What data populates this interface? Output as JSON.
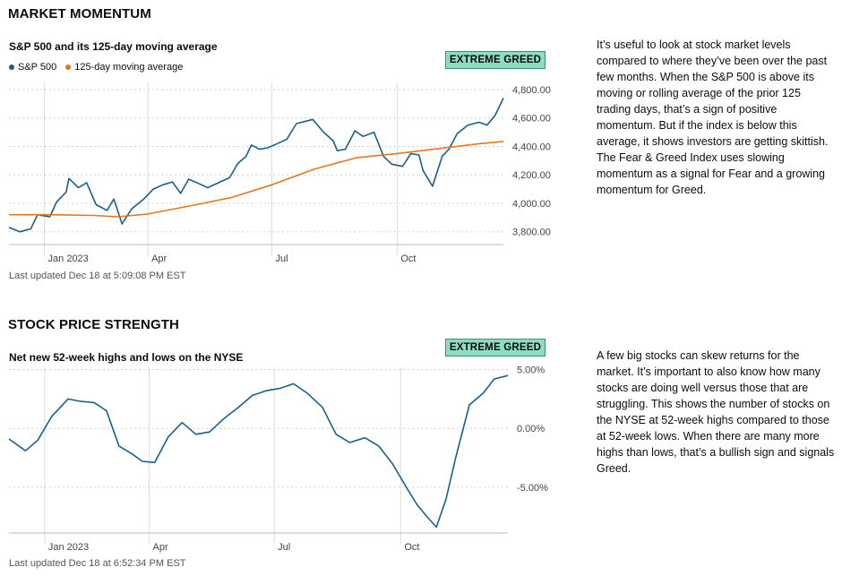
{
  "colors": {
    "sp500_line": "#1a5f8c",
    "moving_average_line": "#e8761e",
    "badge_bg": "#8fdcc4",
    "badge_border": "#3a8f74",
    "grid": "#d0d0d0"
  },
  "market_momentum": {
    "section_title": "MARKET MOMENTUM",
    "chart_title": "S&P 500 and its 125-day moving average",
    "legend": {
      "sp500": "S&P 500",
      "moving_average": "125-day moving average"
    },
    "badge": "EXTREME GREED",
    "last_updated": "Last updated Dec 18 at 5:09:08 PM EST",
    "description": "It’s useful to look at stock market levels compared to where they’ve been over the past few months. When the S&P 500 is above its moving or rolling average of the prior 125 trading days, that’s a sign of positive momentum. But if the index is below this average, it shows investors are getting skittish. The Fear & Greed Index uses slowing momentum as a signal for Fear and a growing momentum for Greed."
  },
  "stock_price_strength": {
    "section_title": "STOCK PRICE STRENGTH",
    "chart_title": "Net new 52-week highs and lows on the NYSE",
    "badge": "EXTREME GREED",
    "last_updated": "Last updated Dec 18 at 6:52:34 PM EST",
    "description": "A few big stocks can skew returns for the market. It’s important to also know how many stocks are doing well versus those that are struggling. This shows the number of stocks on the NYSE at 52-week highs compared to those at 52-week lows. When there are many more highs than lows, that’s a bullish sign and signals Greed."
  },
  "chart_data": [
    {
      "type": "line",
      "title": "S&P 500 and its 125-day moving average",
      "x_tick_labels": [
        "Jan 2023",
        "Apr",
        "Jul",
        "Oct"
      ],
      "x_tick_dates": [
        "2023-01-15",
        "2023-04-01",
        "2023-07-01",
        "2023-10-01"
      ],
      "x_range": [
        "2022-12-20",
        "2023-12-18"
      ],
      "y_tick_labels": [
        "3,800.00",
        "4,000.00",
        "4,200.00",
        "4,400.00",
        "4,600.00",
        "4,800.00"
      ],
      "y_ticks": [
        3800,
        4000,
        4200,
        4400,
        4600,
        4800
      ],
      "ylim": [
        3710,
        4850
      ],
      "grid": "horizontal dashed",
      "legend_position": "top-left",
      "series": [
        {
          "name": "S&P 500",
          "x": [
            "2022-12-20",
            "2022-12-28",
            "2023-01-05",
            "2023-01-10",
            "2023-01-19",
            "2023-01-24",
            "2023-01-31",
            "2023-02-02",
            "2023-02-09",
            "2023-02-15",
            "2023-02-22",
            "2023-03-02",
            "2023-03-07",
            "2023-03-13",
            "2023-03-20",
            "2023-03-29",
            "2023-04-05",
            "2023-04-12",
            "2023-04-19",
            "2023-04-25",
            "2023-05-01",
            "2023-05-08",
            "2023-05-15",
            "2023-05-24",
            "2023-05-31",
            "2023-06-06",
            "2023-06-12",
            "2023-06-16",
            "2023-06-22",
            "2023-06-28",
            "2023-07-05",
            "2023-07-12",
            "2023-07-19",
            "2023-07-31",
            "2023-08-08",
            "2023-08-15",
            "2023-08-18",
            "2023-08-24",
            "2023-08-31",
            "2023-09-06",
            "2023-09-14",
            "2023-09-21",
            "2023-09-27",
            "2023-10-05",
            "2023-10-11",
            "2023-10-17",
            "2023-10-20",
            "2023-10-27",
            "2023-11-03",
            "2023-11-08",
            "2023-11-14",
            "2023-11-22",
            "2023-11-30",
            "2023-12-06",
            "2023-12-12",
            "2023-12-18"
          ],
          "values": [
            3830,
            3800,
            3820,
            3920,
            3905,
            4010,
            4080,
            4175,
            4110,
            4145,
            3990,
            3950,
            4030,
            3855,
            3960,
            4030,
            4100,
            4130,
            4150,
            4070,
            4170,
            4140,
            4110,
            4150,
            4180,
            4280,
            4330,
            4410,
            4380,
            4390,
            4420,
            4450,
            4560,
            4590,
            4500,
            4440,
            4370,
            4380,
            4510,
            4470,
            4500,
            4330,
            4275,
            4260,
            4350,
            4340,
            4230,
            4120,
            4330,
            4380,
            4490,
            4550,
            4570,
            4550,
            4620,
            4740
          ]
        },
        {
          "name": "125-day moving average",
          "x": [
            "2022-12-20",
            "2023-01-20",
            "2023-02-20",
            "2023-03-10",
            "2023-04-01",
            "2023-05-01",
            "2023-06-01",
            "2023-07-01",
            "2023-08-01",
            "2023-09-01",
            "2023-10-01",
            "2023-11-01",
            "2023-12-01",
            "2023-12-18"
          ],
          "values": [
            3920,
            3920,
            3915,
            3905,
            3925,
            3980,
            4040,
            4130,
            4240,
            4320,
            4350,
            4385,
            4420,
            4435
          ]
        }
      ]
    },
    {
      "type": "line",
      "title": "Net new 52-week highs and lows on the NYSE",
      "x_tick_labels": [
        "Jan 2023",
        "Apr",
        "Jul",
        "Oct"
      ],
      "x_tick_dates": [
        "2023-01-15",
        "2023-04-01",
        "2023-07-01",
        "2023-10-01"
      ],
      "x_range": [
        "2022-12-20",
        "2023-12-18"
      ],
      "y_tick_labels": [
        "5.00%",
        "0.00%",
        "-5.00%"
      ],
      "y_ticks": [
        5,
        0,
        -5
      ],
      "ylim": [
        -8.9,
        5.2
      ],
      "grid": "horizontal dashed",
      "series": [
        {
          "name": "Net new 52-week highs and lows",
          "x": [
            "2022-12-20",
            "2023-01-01",
            "2023-01-10",
            "2023-01-20",
            "2023-02-01",
            "2023-02-10",
            "2023-02-20",
            "2023-03-01",
            "2023-03-10",
            "2023-03-20",
            "2023-03-27",
            "2023-04-05",
            "2023-04-15",
            "2023-04-25",
            "2023-05-05",
            "2023-05-15",
            "2023-05-25",
            "2023-06-05",
            "2023-06-15",
            "2023-06-25",
            "2023-07-05",
            "2023-07-15",
            "2023-07-25",
            "2023-08-05",
            "2023-08-15",
            "2023-08-25",
            "2023-09-05",
            "2023-09-15",
            "2023-09-25",
            "2023-10-05",
            "2023-10-13",
            "2023-10-20",
            "2023-10-27",
            "2023-11-03",
            "2023-11-10",
            "2023-11-20",
            "2023-11-30",
            "2023-12-08",
            "2023-12-18"
          ],
          "values": [
            -0.9,
            -1.9,
            -1.0,
            1.0,
            2.5,
            2.3,
            2.2,
            1.5,
            -1.5,
            -2.2,
            -2.8,
            -2.9,
            -0.7,
            0.5,
            -0.5,
            -0.3,
            0.8,
            1.8,
            2.8,
            3.2,
            3.4,
            3.8,
            3.0,
            1.8,
            -0.5,
            -1.2,
            -0.8,
            -1.5,
            -3.0,
            -5.0,
            -6.5,
            -7.5,
            -8.4,
            -6.0,
            -2.5,
            2.0,
            3.0,
            4.2,
            4.5
          ]
        }
      ]
    }
  ]
}
